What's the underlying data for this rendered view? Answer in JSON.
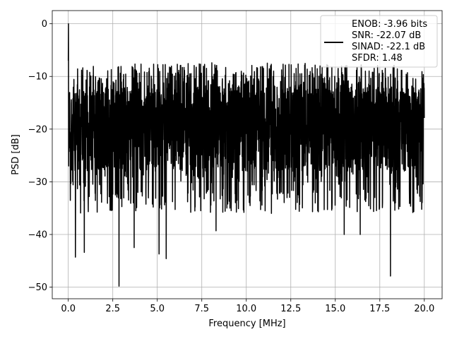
{
  "chart_data": {
    "type": "line",
    "title": "",
    "xlabel": "Frequency [MHz]",
    "ylabel": "PSD [dB]",
    "xlim": [
      -0.9,
      21.0
    ],
    "ylim": [
      -52.2,
      2.5
    ],
    "grid": true,
    "legend_position": "top-right",
    "line_color": "#000000",
    "xticks": [
      0.0,
      2.5,
      5.0,
      7.5,
      10.0,
      12.5,
      15.0,
      17.5,
      20.0
    ],
    "xtick_labels": [
      "0.0",
      "2.5",
      "5.0",
      "7.5",
      "10.0",
      "12.5",
      "15.0",
      "17.5",
      "20.0"
    ],
    "yticks": [
      0,
      -10,
      -20,
      -30,
      -40,
      -50
    ],
    "ytick_labels": [
      "0",
      "−10",
      "−20",
      "−30",
      "−40",
      "−50"
    ],
    "legend_entries": [
      "ENOB: -3.96 bits",
      "SNR: -22.07 dB",
      "SINAD: -22.1 dB",
      "SFDR: 1.48"
    ],
    "series": [
      {
        "x_range": [
          0,
          20
        ],
        "peak": {
          "x": 0.0,
          "y": 0.0
        },
        "noise_floor_band": [
          -28,
          -12
        ],
        "notable_dips": [
          {
            "x": 0.4,
            "y": -44.3
          },
          {
            "x": 0.9,
            "y": -43.4
          },
          {
            "x": 2.85,
            "y": -49.8
          },
          {
            "x": 5.1,
            "y": -43.7
          },
          {
            "x": 5.5,
            "y": -44.6
          },
          {
            "x": 3.7,
            "y": -42.5
          },
          {
            "x": 18.1,
            "y": -47.9
          },
          {
            "x": 15.5,
            "y": -40.0
          },
          {
            "x": 16.4,
            "y": -40.0
          },
          {
            "x": 8.3,
            "y": -39.3
          }
        ]
      }
    ]
  }
}
